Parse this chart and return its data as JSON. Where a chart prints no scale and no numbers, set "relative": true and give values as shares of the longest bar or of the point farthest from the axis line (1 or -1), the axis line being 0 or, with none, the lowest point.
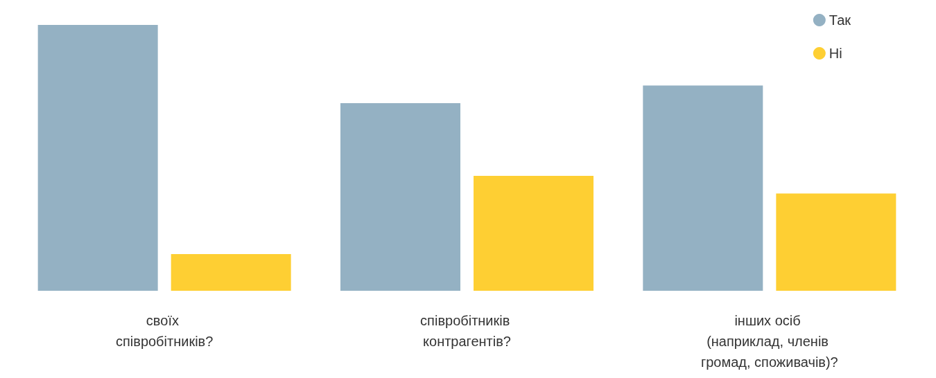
{
  "chart_data": {
    "type": "bar",
    "relative": true,
    "categories": [
      "своїх співробітників?",
      "співробітників контрагентів?",
      "інших осіб (наприклад, членів громад, споживачів)?"
    ],
    "series": [
      {
        "name": "Так",
        "color": "#94b1c3",
        "values": [
          1,
          0.706,
          0.772
        ]
      },
      {
        "name": "Ні",
        "color": "#fecf33",
        "values": [
          0.138,
          0.432,
          0.366
        ]
      }
    ],
    "legend": "top right",
    "grid": false
  }
}
